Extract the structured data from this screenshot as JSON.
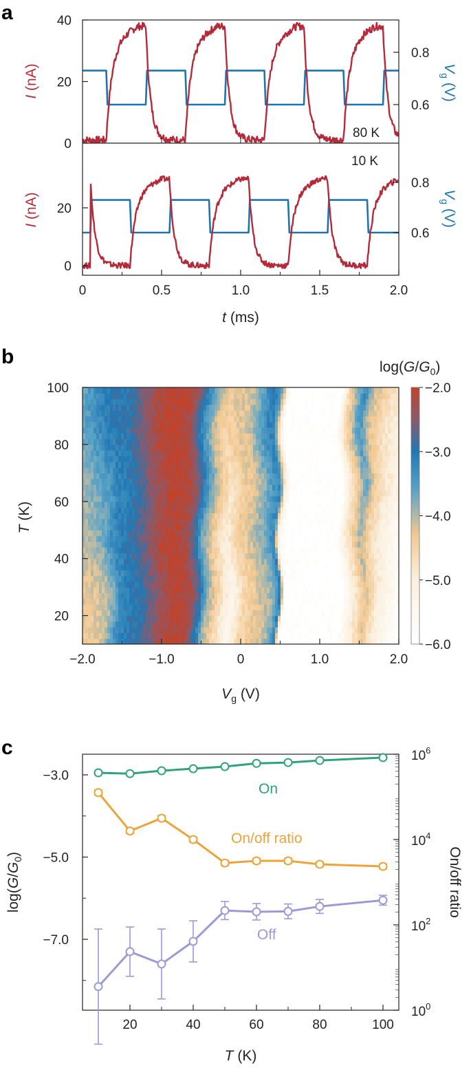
{
  "panel_labels": [
    "a",
    "b",
    "c"
  ],
  "colors": {
    "current": "#b52a38",
    "gate": "#1d74b2",
    "on": "#2ea27a",
    "ratio": "#eea33a",
    "off": "#9a9ad6",
    "axis": "#222222"
  },
  "chart_data": [
    {
      "id": "a",
      "type": "line",
      "title": "",
      "xlabel": {
        "italic": "t",
        "rest": " (ms)"
      },
      "xlim": [
        0,
        2.0
      ],
      "xticks": [
        "0",
        "0.5",
        "1.0",
        "1.5",
        "2.0"
      ],
      "ylabel_left": {
        "italic": "I",
        "rest": " (nA)"
      },
      "ylabel_right": {
        "main": "V",
        "sub": "g",
        "rest": " (V)"
      },
      "subplots": [
        {
          "name": "top",
          "annotation": "80 K",
          "ylim_left": [
            0,
            40
          ],
          "yticks_left": [
            "0",
            "20",
            "40"
          ],
          "ylim_right": [
            0.47,
            0.95
          ],
          "yticks_right": [
            "0.6",
            "0.8"
          ],
          "gate": {
            "name": "V_g",
            "period_ms": 0.5,
            "high_V": 0.73,
            "low_V": 0.6,
            "fall_edges_ms": [
              0.15,
              0.65,
              1.15,
              1.65
            ],
            "rise_edges_ms": [
              0.4,
              0.9,
              1.4,
              1.9
            ],
            "x_end_ms": 2.0
          },
          "current": {
            "name": "I",
            "high_nA": 38,
            "low_nA": 1,
            "rise_start_ms": [
              0.15,
              0.65,
              1.15,
              1.65
            ],
            "rise_peak_ms": [
              0.4,
              0.9,
              1.4,
              1.9
            ],
            "noise_nA": 1.2
          }
        },
        {
          "name": "bottom",
          "annotation": "10 K",
          "ylim_left": [
            -2,
            39
          ],
          "yticks_left": [
            "0",
            "20"
          ],
          "ylim_right": [
            0.42,
            0.93
          ],
          "yticks_right": [
            "0.6",
            "0.8"
          ],
          "gate": {
            "name": "V_g",
            "period_ms": 0.5,
            "high_V": 0.73,
            "low_V": 0.6,
            "fall_edges_ms": [
              0.3,
              0.8,
              1.3,
              1.8
            ],
            "rise_edges_ms": [
              0.05,
              0.55,
              1.05,
              1.55
            ],
            "x_end_ms": 2.0
          },
          "current": {
            "name": "I",
            "high_nA": 30,
            "low_nA": 0,
            "rise_start_ms": [
              0.3,
              0.8,
              1.3,
              1.8
            ],
            "rise_peak_ms": [
              0.05,
              0.55,
              1.05,
              1.55
            ],
            "noise_nA": 1.0
          }
        }
      ]
    },
    {
      "id": "b",
      "type": "heatmap",
      "title": "",
      "colorbar_label": {
        "prefix": "log(",
        "italic1": "G",
        "mid": "/",
        "italic2": "G",
        "sub": "0",
        "suffix": ")"
      },
      "xlabel": {
        "main": "V",
        "sub": "g",
        "rest": " (V)"
      },
      "ylabel": {
        "italic": "T",
        "rest": " (K)"
      },
      "xlim": [
        -2.0,
        2.0
      ],
      "ylim": [
        10,
        100
      ],
      "xticks": [
        "-2.0",
        "-1.0",
        "0",
        "1.0",
        "2.0"
      ],
      "yticks": [
        "20",
        "40",
        "60",
        "80",
        "100"
      ],
      "colorbar_ticks": [
        "-2.0",
        "-3.0",
        "-4.0",
        "-5.0",
        "-6.0"
      ],
      "colorbar_range": [
        -6.0,
        -2.0
      ],
      "colorscale": [
        {
          "v": -6.0,
          "c": "#ffffff"
        },
        {
          "v": -5.0,
          "c": "#fbf0df"
        },
        {
          "v": -4.3,
          "c": "#f2c992"
        },
        {
          "v": -3.6,
          "c": "#5aa3c6"
        },
        {
          "v": -3.0,
          "c": "#2078b4"
        },
        {
          "v": -2.5,
          "c": "#8a5a6c"
        },
        {
          "v": -2.0,
          "c": "#c0432c"
        }
      ],
      "profile_20K": [
        [
          -2.0,
          -4.3
        ],
        [
          -1.85,
          -4.3
        ],
        [
          -1.7,
          -4.1
        ],
        [
          -1.55,
          -3.3
        ],
        [
          -1.4,
          -3.0
        ],
        [
          -1.25,
          -2.9
        ],
        [
          -1.1,
          -2.5
        ],
        [
          -0.95,
          -2.2
        ],
        [
          -0.8,
          -2.05
        ],
        [
          -0.65,
          -2.3
        ],
        [
          -0.55,
          -3.0
        ],
        [
          -0.45,
          -4.0
        ],
        [
          -0.3,
          -4.7
        ],
        [
          -0.15,
          -5.4
        ],
        [
          0.0,
          -4.6
        ],
        [
          0.1,
          -4.4
        ],
        [
          0.2,
          -4.2
        ],
        [
          0.3,
          -4.1
        ],
        [
          0.4,
          -3.8
        ],
        [
          0.46,
          -3.0
        ],
        [
          0.52,
          -6.0
        ],
        [
          1.25,
          -6.0
        ],
        [
          1.4,
          -5.0
        ],
        [
          1.55,
          -4.3
        ],
        [
          1.7,
          -5.0
        ],
        [
          2.0,
          -6.0
        ]
      ],
      "profile_100K": [
        [
          -2.0,
          -3.6
        ],
        [
          -1.85,
          -3.3
        ],
        [
          -1.7,
          -3.0
        ],
        [
          -1.55,
          -3.0
        ],
        [
          -1.4,
          -3.0
        ],
        [
          -1.25,
          -2.6
        ],
        [
          -1.1,
          -2.3
        ],
        [
          -0.95,
          -2.05
        ],
        [
          -0.8,
          -2.0
        ],
        [
          -0.65,
          -2.1
        ],
        [
          -0.55,
          -2.4
        ],
        [
          -0.45,
          -3.0
        ],
        [
          -0.3,
          -3.9
        ],
        [
          -0.15,
          -4.3
        ],
        [
          0.0,
          -4.2
        ],
        [
          0.1,
          -4.2
        ],
        [
          0.2,
          -3.9
        ],
        [
          0.3,
          -3.4
        ],
        [
          0.4,
          -3.0
        ],
        [
          0.5,
          -3.6
        ],
        [
          0.6,
          -6.0
        ],
        [
          1.25,
          -6.0
        ],
        [
          1.35,
          -4.6
        ],
        [
          1.55,
          -3.2
        ],
        [
          1.65,
          -4.0
        ],
        [
          1.8,
          -4.5
        ],
        [
          2.0,
          -4.8
        ]
      ]
    },
    {
      "id": "c",
      "type": "line",
      "title": "",
      "xlabel": {
        "italic": "T",
        "rest": " (K)"
      },
      "ylabel_left": {
        "prefix": "log(",
        "italic1": "G",
        "mid": "/",
        "italic2": "G",
        "sub": "0",
        "suffix": ")"
      },
      "ylabel_right": "On/off ratio",
      "xlim": [
        5,
        105
      ],
      "xticks": [
        "20",
        "40",
        "60",
        "80",
        "100"
      ],
      "ylim_left": [
        -8.8,
        -2.5
      ],
      "yticks_left": [
        "-3.0",
        "-5.0",
        "-7.0"
      ],
      "yscale_right": "log",
      "ylim_right_log10": [
        0,
        6
      ],
      "yticks_right": [
        {
          "base": "10",
          "exp": "6"
        },
        {
          "base": "10",
          "exp": "4"
        },
        {
          "base": "10",
          "exp": "2"
        },
        {
          "base": "10",
          "exp": "0"
        }
      ],
      "x": [
        10,
        20,
        30,
        40,
        50,
        60,
        70,
        80,
        100
      ],
      "series": [
        {
          "name": "On",
          "label": "On",
          "axis": "left",
          "values": [
            -2.95,
            -2.97,
            -2.9,
            -2.85,
            -2.8,
            -2.72,
            -2.7,
            -2.65,
            -2.58
          ],
          "errors": [
            0.02,
            0.02,
            0.02,
            0.02,
            0.02,
            0.02,
            0.02,
            0.02,
            0.02
          ]
        },
        {
          "name": "On/off ratio",
          "label": "On/off ratio",
          "axis": "right",
          "values_log10": [
            5.1,
            4.2,
            4.5,
            4.0,
            3.45,
            3.5,
            3.5,
            3.42,
            3.37
          ],
          "errors_log10": [
            0.06,
            0.06,
            0.06,
            0.06,
            0.06,
            0.06,
            0.06,
            0.06,
            0.06
          ]
        },
        {
          "name": "Off",
          "label": "Off",
          "axis": "left",
          "values": [
            -8.15,
            -7.3,
            -7.6,
            -7.05,
            -6.3,
            -6.33,
            -6.32,
            -6.2,
            -6.05
          ],
          "errors": [
            1.4,
            0.6,
            0.85,
            0.5,
            0.22,
            0.2,
            0.18,
            0.17,
            0.12
          ]
        }
      ]
    }
  ]
}
